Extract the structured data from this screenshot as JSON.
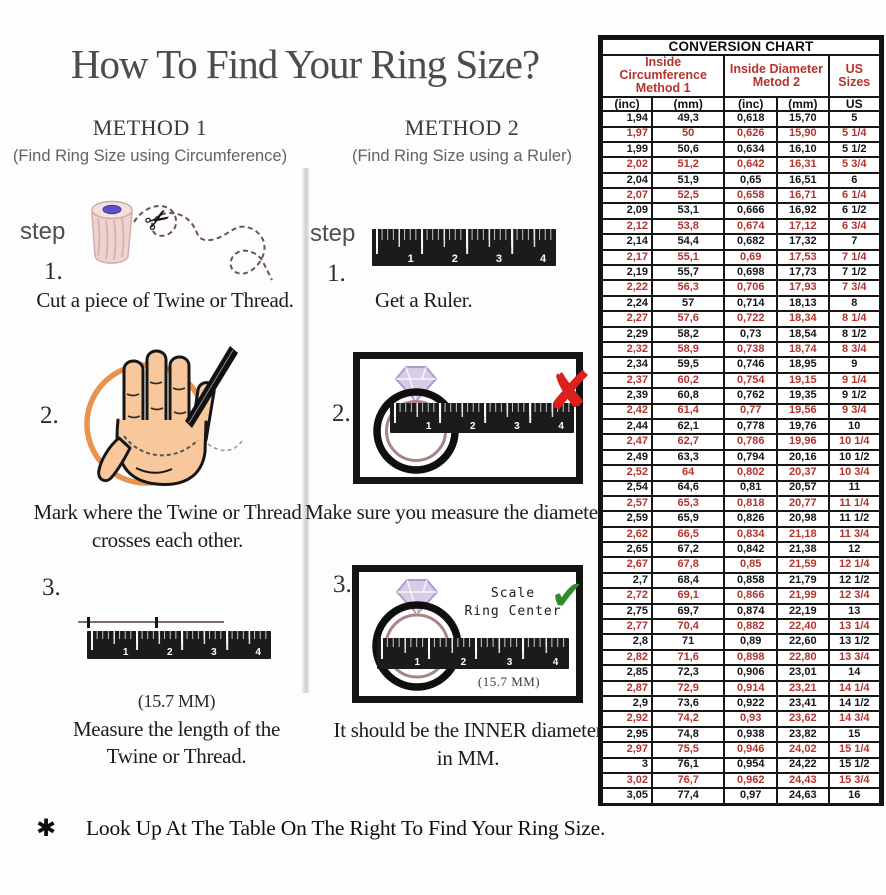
{
  "page": {
    "title": "How To Find Your Ring Size?",
    "footer_asterisk": "✱",
    "footer_text": "Look Up  At The Table On The Right To Find Your Ring Size."
  },
  "icons": {
    "scissors": "✂",
    "wrong_x": "✘",
    "correct_check": "✔"
  },
  "ruler_numbers": [
    "1",
    "2",
    "3",
    "4"
  ],
  "method1": {
    "title": "METHOD 1",
    "subtitle": "(Find Ring Size using Circumference)",
    "step_label": "step",
    "step1_num": "1.",
    "step1_caption": "Cut a piece of  Twine or Thread.",
    "step2_num": "2.",
    "step2_caption_line1": "Mark where the Twine or Thread",
    "step2_caption_line2": "crosses each other.",
    "step3_num": "3.",
    "step3_measurement": "(15.7 MM)",
    "step3_caption_line1": "Measure the length of the",
    "step3_caption_line2": "Twine or Thread."
  },
  "method2": {
    "title": "METHOD 2",
    "subtitle": "(Find Ring Size using a Ruler)",
    "step_label": "step",
    "step1_num": "1.",
    "step1_caption": "Get a Ruler.",
    "step2_num": "2.",
    "step2_caption": "Make sure you measure the diameter.",
    "step3_num": "3.",
    "step3_scale_label_line1": "Scale",
    "step3_scale_label_line2": "Ring Center",
    "step3_measurement": "(15.7 MM)",
    "step3_caption_line1": "It should be the INNER diameter",
    "step3_caption_line2": "in MM."
  },
  "table": {
    "title": "CONVERSION CHART",
    "col_groups": [
      {
        "line1": "Inside Circumference",
        "line2": "Method 1"
      },
      {
        "line1": "Inside Diameter",
        "line2": "Metod 2"
      },
      {
        "single": "US Sizes"
      }
    ],
    "sub_headers": [
      "(inc)",
      "(mm)",
      "(inc)",
      "(mm)",
      "US"
    ],
    "rows": [
      {
        "values": [
          "1,94",
          "49,3",
          "0,618",
          "15,70",
          "5"
        ],
        "highlight": false
      },
      {
        "values": [
          "1,97",
          "50",
          "0,626",
          "15,90",
          "5 1/4"
        ],
        "highlight": true
      },
      {
        "values": [
          "1,99",
          "50,6",
          "0,634",
          "16,10",
          "5 1/2"
        ],
        "highlight": false
      },
      {
        "values": [
          "2,02",
          "51,2",
          "0,642",
          "16,31",
          "5 3/4"
        ],
        "highlight": true
      },
      {
        "values": [
          "2,04",
          "51,9",
          "0,65",
          "16,51",
          "6"
        ],
        "highlight": false
      },
      {
        "values": [
          "2,07",
          "52,5",
          "0,658",
          "16,71",
          "6 1/4"
        ],
        "highlight": true
      },
      {
        "values": [
          "2,09",
          "53,1",
          "0,666",
          "16,92",
          "6 1/2"
        ],
        "highlight": false
      },
      {
        "values": [
          "2,12",
          "53,8",
          "0,674",
          "17,12",
          "6 3/4"
        ],
        "highlight": true
      },
      {
        "values": [
          "2,14",
          "54,4",
          "0,682",
          "17,32",
          "7"
        ],
        "highlight": false
      },
      {
        "values": [
          "2,17",
          "55,1",
          "0,69",
          "17,53",
          "7 1/4"
        ],
        "highlight": true
      },
      {
        "values": [
          "2,19",
          "55,7",
          "0,698",
          "17,73",
          "7 1/2"
        ],
        "highlight": false
      },
      {
        "values": [
          "2,22",
          "56,3",
          "0,706",
          "17,93",
          "7 3/4"
        ],
        "highlight": true
      },
      {
        "values": [
          "2,24",
          "57",
          "0,714",
          "18,13",
          "8"
        ],
        "highlight": false
      },
      {
        "values": [
          "2,27",
          "57,6",
          "0,722",
          "18,34",
          "8 1/4"
        ],
        "highlight": true
      },
      {
        "values": [
          "2,29",
          "58,2",
          "0,73",
          "18,54",
          "8 1/2"
        ],
        "highlight": false
      },
      {
        "values": [
          "2,32",
          "58,9",
          "0,738",
          "18,74",
          "8 3/4"
        ],
        "highlight": true
      },
      {
        "values": [
          "2,34",
          "59,5",
          "0,746",
          "18,95",
          "9"
        ],
        "highlight": false
      },
      {
        "values": [
          "2,37",
          "60,2",
          "0,754",
          "19,15",
          "9 1/4"
        ],
        "highlight": true
      },
      {
        "values": [
          "2,39",
          "60,8",
          "0,762",
          "19,35",
          "9 1/2"
        ],
        "highlight": false
      },
      {
        "values": [
          "2,42",
          "61,4",
          "0,77",
          "19,56",
          "9 3/4"
        ],
        "highlight": true
      },
      {
        "values": [
          "2,44",
          "62,1",
          "0,778",
          "19,76",
          "10"
        ],
        "highlight": false
      },
      {
        "values": [
          "2,47",
          "62,7",
          "0,786",
          "19,96",
          "10 1/4"
        ],
        "highlight": true
      },
      {
        "values": [
          "2,49",
          "63,3",
          "0,794",
          "20,16",
          "10 1/2"
        ],
        "highlight": false
      },
      {
        "values": [
          "2,52",
          "64",
          "0,802",
          "20,37",
          "10 3/4"
        ],
        "highlight": true
      },
      {
        "values": [
          "2,54",
          "64,6",
          "0,81",
          "20,57",
          "11"
        ],
        "highlight": false
      },
      {
        "values": [
          "2,57",
          "65,3",
          "0,818",
          "20,77",
          "11 1/4"
        ],
        "highlight": true
      },
      {
        "values": [
          "2,59",
          "65,9",
          "0,826",
          "20,98",
          "11 1/2"
        ],
        "highlight": false
      },
      {
        "values": [
          "2,62",
          "66,5",
          "0,834",
          "21,18",
          "11 3/4"
        ],
        "highlight": true
      },
      {
        "values": [
          "2,65",
          "67,2",
          "0,842",
          "21,38",
          "12"
        ],
        "highlight": false
      },
      {
        "values": [
          "2,67",
          "67,8",
          "0,85",
          "21,59",
          "12 1/4"
        ],
        "highlight": true
      },
      {
        "values": [
          "2,7",
          "68,4",
          "0,858",
          "21,79",
          "12 1/2"
        ],
        "highlight": false
      },
      {
        "values": [
          "2,72",
          "69,1",
          "0,866",
          "21,99",
          "12 3/4"
        ],
        "highlight": true
      },
      {
        "values": [
          "2,75",
          "69,7",
          "0,874",
          "22,19",
          "13"
        ],
        "highlight": false
      },
      {
        "values": [
          "2,77",
          "70,4",
          "0,882",
          "22,40",
          "13 1/4"
        ],
        "highlight": true
      },
      {
        "values": [
          "2,8",
          "71",
          "0,89",
          "22,60",
          "13 1/2"
        ],
        "highlight": false
      },
      {
        "values": [
          "2,82",
          "71,6",
          "0,898",
          "22,80",
          "13 3/4"
        ],
        "highlight": true
      },
      {
        "values": [
          "2,85",
          "72,3",
          "0,906",
          "23,01",
          "14"
        ],
        "highlight": false
      },
      {
        "values": [
          "2,87",
          "72,9",
          "0,914",
          "23,21",
          "14 1/4"
        ],
        "highlight": true
      },
      {
        "values": [
          "2,9",
          "73,6",
          "0,922",
          "23,41",
          "14 1/2"
        ],
        "highlight": false
      },
      {
        "values": [
          "2,92",
          "74,2",
          "0,93",
          "23,62",
          "14 3/4"
        ],
        "highlight": true
      },
      {
        "values": [
          "2,95",
          "74,8",
          "0,938",
          "23,82",
          "15"
        ],
        "highlight": false
      },
      {
        "values": [
          "2,97",
          "75,5",
          "0,946",
          "24,02",
          "15 1/4"
        ],
        "highlight": true
      },
      {
        "values": [
          "3",
          "76,1",
          "0,954",
          "24,22",
          "15 1/2"
        ],
        "highlight": false
      },
      {
        "values": [
          "3,02",
          "76,7",
          "0,962",
          "24,43",
          "15 3/4"
        ],
        "highlight": true
      },
      {
        "values": [
          "3,05",
          "77,4",
          "0,97",
          "24,63",
          "16"
        ],
        "highlight": false
      }
    ]
  },
  "colors": {
    "accent_red": "#b5332e",
    "table_black": "#161616",
    "circle_orange": "#e8944f",
    "hand_skin": "#f8c79c",
    "check_green": "#2e8b2e",
    "x_red": "#dc1f1f",
    "diamond_lavender": "#d9cce9",
    "ring_inner_band": "#aa8383"
  }
}
